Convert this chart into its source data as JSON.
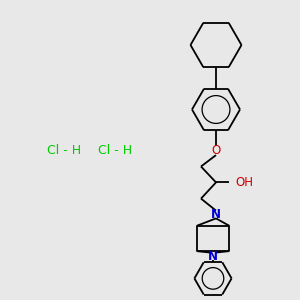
{
  "bg_color": "#e8e8e8",
  "bond_color": "#000000",
  "o_color": "#cc0000",
  "n_color": "#0000cc",
  "hcl_color": "#00cc00",
  "oh_label": "OH",
  "o_label": "O",
  "n_label": "N",
  "n2_label": "N",
  "hcl1_label": "Cl - H",
  "hcl2_label": "Cl - H",
  "figsize": [
    3.0,
    3.0
  ],
  "dpi": 100
}
